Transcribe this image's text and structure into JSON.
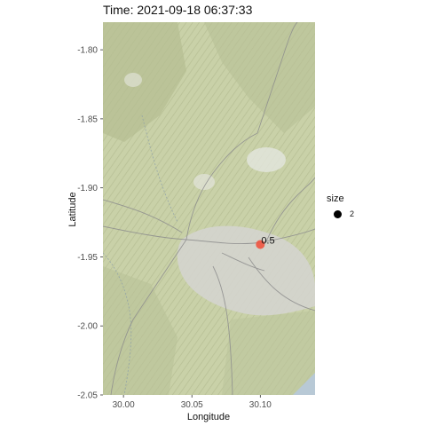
{
  "title": "Time: 2021-09-18 06:37:33",
  "chart_data": {
    "type": "scatter",
    "basemap": "terrain",
    "xlabel": "Longitude",
    "ylabel": "Latitude",
    "xlim": [
      29.985,
      30.14
    ],
    "ylim": [
      -2.05,
      -1.78
    ],
    "xticks": [
      30.0,
      30.05,
      30.1
    ],
    "xtick_labels": [
      "30.00",
      "30.05",
      "30.10"
    ],
    "yticks": [
      -1.8,
      -1.85,
      -1.9,
      -1.95,
      -2.0,
      -2.05
    ],
    "ytick_labels": [
      "-1.80",
      "-1.85",
      "-1.90",
      "-1.95",
      "-2.00",
      "-2.05"
    ],
    "points": [
      {
        "x": 30.1,
        "y": -1.941,
        "size": 2,
        "label": "0.5",
        "color": "#f0533f"
      }
    ],
    "legend": {
      "title": "size",
      "position": "right",
      "entries": [
        {
          "label": "2",
          "color": "#000000"
        }
      ]
    },
    "colors": {
      "map_base": "#c8d0a6",
      "urban": "#d3d3cd",
      "point": "#f0533f"
    }
  }
}
